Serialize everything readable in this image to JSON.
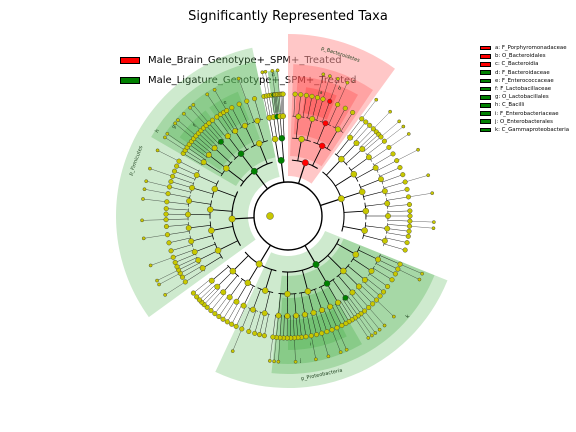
{
  "title": "Significantly Represented Taxa",
  "colors": {
    "red": "#ff0000",
    "green": "#008000",
    "node_default": "#c8c800",
    "red_shade": "#ff9999",
    "green_shade": "#5cb85c"
  },
  "groups": [
    {
      "name": "Male_Brain_Genotype+_SPM+_Treated",
      "color": "#ff0000"
    },
    {
      "name": "Male_Ligature_Genotype+_SPM+_Treated",
      "color": "#008000"
    }
  ],
  "clade_legend": [
    {
      "label": "a: F_Porphyromonadaceae",
      "color": "#ff0000"
    },
    {
      "label": "b: O_Bacteroidales",
      "color": "#ff0000"
    },
    {
      "label": "c: C_Bacteroidia",
      "color": "#ff0000"
    },
    {
      "label": "d: F_Bacteroidaceae",
      "color": "#008000"
    },
    {
      "label": "e: F_Enterococcaceae",
      "color": "#008000"
    },
    {
      "label": "f: F_Lactobacillaceae",
      "color": "#008000"
    },
    {
      "label": "g: O_Lactobacillales",
      "color": "#008000"
    },
    {
      "label": "h: C_Bacilli",
      "color": "#008000"
    },
    {
      "label": "i: F_Enterobacteriaceae",
      "color": "#008000"
    },
    {
      "label": "j: O_Enterobacterales",
      "color": "#008000"
    },
    {
      "label": "k: C_Gammaproteobacteria",
      "color": "#008000"
    }
  ],
  "chart_data": {
    "type": "cladogram",
    "title": "Significantly Represented Taxa",
    "phyla": [
      {
        "label": "p_Bacteroidetes",
        "group": "Male_Brain_Genotype+_SPM+_Treated"
      },
      {
        "label": "p_Firmicutes",
        "group": "Male_Ligature_Genotype+_SPM+_Treated"
      },
      {
        "label": "p_Proteobacteria",
        "group": "Male_Ligature_Genotype+_SPM+_Treated"
      }
    ],
    "enriched_clades": [
      {
        "key": "a",
        "taxon": "F_Porphyromonadaceae",
        "group": "Male_Brain_Genotype+_SPM+_Treated"
      },
      {
        "key": "b",
        "taxon": "O_Bacteroidales",
        "group": "Male_Brain_Genotype+_SPM+_Treated"
      },
      {
        "key": "c",
        "taxon": "C_Bacteroidia",
        "group": "Male_Brain_Genotype+_SPM+_Treated"
      },
      {
        "key": "d",
        "taxon": "F_Bacteroidaceae",
        "group": "Male_Ligature_Genotype+_SPM+_Treated"
      },
      {
        "key": "e",
        "taxon": "F_Enterococcaceae",
        "group": "Male_Ligature_Genotype+_SPM+_Treated"
      },
      {
        "key": "f",
        "taxon": "F_Lactobacillaceae",
        "group": "Male_Ligature_Genotype+_SPM+_Treated"
      },
      {
        "key": "g",
        "taxon": "O_Lactobacillales",
        "group": "Male_Ligature_Genotype+_SPM+_Treated"
      },
      {
        "key": "h",
        "taxon": "C_Bacilli",
        "group": "Male_Ligature_Genotype+_SPM+_Treated"
      },
      {
        "key": "i",
        "taxon": "F_Enterobacteriaceae",
        "group": "Male_Ligature_Genotype+_SPM+_Treated"
      },
      {
        "key": "j",
        "taxon": "O_Enterobacterales",
        "group": "Male_Ligature_Genotype+_SPM+_Treated"
      },
      {
        "key": "k",
        "taxon": "C_Gammaproteobacteria",
        "group": "Male_Ligature_Genotype+_SPM+_Treated"
      }
    ],
    "sector_labels": [
      "p_Bacteroidetes",
      "p_Firmicutes",
      "p_Proteobacteria",
      "a",
      "b",
      "c",
      "d",
      "e",
      "f",
      "g",
      "h",
      "i",
      "j",
      "k"
    ]
  }
}
